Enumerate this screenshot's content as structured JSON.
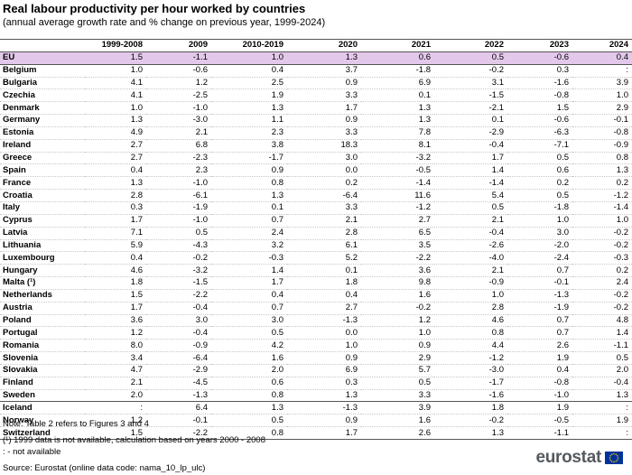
{
  "title": "Real labour productivity per hour worked by countries",
  "subtitle": "(annual average growth rate and % change on previous year, 1999-2024)",
  "columns": [
    "",
    "1999-2008",
    "2009",
    "2010-2019",
    "2020",
    "2021",
    "2022",
    "2023",
    "2024"
  ],
  "eu": [
    "EU",
    "1.5",
    "-1.1",
    "1.0",
    "1.3",
    "0.6",
    "0.5",
    "-0.6",
    "0.4"
  ],
  "rows": [
    [
      "Belgium",
      "1.0",
      "-0.6",
      "0.4",
      "3.7",
      "-1.8",
      "-0.2",
      "0.3",
      ":"
    ],
    [
      "Bulgaria",
      "4.1",
      "1.2",
      "2.5",
      "0.9",
      "6.9",
      "3.1",
      "-1.6",
      "3.9"
    ],
    [
      "Czechia",
      "4.1",
      "-2.5",
      "1.9",
      "3.3",
      "0.1",
      "-1.5",
      "-0.8",
      "1.0"
    ],
    [
      "Denmark",
      "1.0",
      "-1.0",
      "1.3",
      "1.7",
      "1.3",
      "-2.1",
      "1.5",
      "2.9"
    ],
    [
      "Germany",
      "1.3",
      "-3.0",
      "1.1",
      "0.9",
      "1.3",
      "0.1",
      "-0.6",
      "-0.1"
    ],
    [
      "Estonia",
      "4.9",
      "2.1",
      "2.3",
      "3.3",
      "7.8",
      "-2.9",
      "-6.3",
      "-0.8"
    ],
    [
      "Ireland",
      "2.7",
      "6.8",
      "3.8",
      "18.3",
      "8.1",
      "-0.4",
      "-7.1",
      "-0.9"
    ],
    [
      "Greece",
      "2.7",
      "-2.3",
      "-1.7",
      "3.0",
      "-3.2",
      "1.7",
      "0.5",
      "0.8"
    ],
    [
      "Spain",
      "0.4",
      "2.3",
      "0.9",
      "0.0",
      "-0.5",
      "1.4",
      "0.6",
      "1.3"
    ],
    [
      "France",
      "1.3",
      "-1.0",
      "0.8",
      "0.2",
      "-1.4",
      "-1.4",
      "0.2",
      "0.2"
    ],
    [
      "Croatia",
      "2.8",
      "-6.1",
      "1.3",
      "-6.4",
      "11.6",
      "5.4",
      "0.5",
      "-1.2"
    ],
    [
      "Italy",
      "0.3",
      "-1.9",
      "0.1",
      "3.3",
      "-1.2",
      "0.5",
      "-1.8",
      "-1.4"
    ],
    [
      "Cyprus",
      "1.7",
      "-1.0",
      "0.7",
      "2.1",
      "2.7",
      "2.1",
      "1.0",
      "1.0"
    ],
    [
      "Latvia",
      "7.1",
      "0.5",
      "2.4",
      "2.8",
      "6.5",
      "-0.4",
      "3.0",
      "-0.2"
    ],
    [
      "Lithuania",
      "5.9",
      "-4.3",
      "3.2",
      "6.1",
      "3.5",
      "-2.6",
      "-2.0",
      "-0.2"
    ],
    [
      "Luxembourg",
      "0.4",
      "-0.2",
      "-0.3",
      "5.2",
      "-2.2",
      "-4.0",
      "-2.4",
      "-0.3"
    ],
    [
      "Hungary",
      "4.6",
      "-3.2",
      "1.4",
      "0.1",
      "3.6",
      "2.1",
      "0.7",
      "0.2"
    ],
    [
      "Malta (¹)",
      "1.8",
      "-1.5",
      "1.7",
      "1.8",
      "9.8",
      "-0.9",
      "-0.1",
      "2.4"
    ],
    [
      "Netherlands",
      "1.5",
      "-2.2",
      "0.4",
      "0.4",
      "1.6",
      "1.0",
      "-1.3",
      "-0.2"
    ],
    [
      "Austria",
      "1.7",
      "-0.4",
      "0.7",
      "2.7",
      "-0.2",
      "2.8",
      "-1.9",
      "-0.2"
    ],
    [
      "Poland",
      "3.6",
      "3.0",
      "3.0",
      "-1.3",
      "1.2",
      "4.6",
      "0.7",
      "4.8"
    ],
    [
      "Portugal",
      "1.2",
      "-0.4",
      "0.5",
      "0.0",
      "1.0",
      "0.8",
      "0.7",
      "1.4"
    ],
    [
      "Romania",
      "8.0",
      "-0.9",
      "4.2",
      "1.0",
      "0.9",
      "4.4",
      "2.6",
      "-1.1"
    ],
    [
      "Slovenia",
      "3.4",
      "-6.4",
      "1.6",
      "0.9",
      "2.9",
      "-1.2",
      "1.9",
      "0.5"
    ],
    [
      "Slovakia",
      "4.7",
      "-2.9",
      "2.0",
      "6.9",
      "5.7",
      "-3.0",
      "0.4",
      "2.0"
    ],
    [
      "Finland",
      "2.1",
      "-4.5",
      "0.6",
      "0.3",
      "0.5",
      "-1.7",
      "-0.8",
      "-0.4"
    ],
    [
      "Sweden",
      "2.0",
      "-1.3",
      "0.8",
      "1.3",
      "3.3",
      "-1.6",
      "-1.0",
      "1.3"
    ]
  ],
  "efta_rows": [
    [
      "Iceland",
      ":",
      "6.4",
      "1.3",
      "-1.3",
      "3.9",
      "1.8",
      "1.9",
      ":"
    ],
    [
      "Norway",
      "1.2",
      "-0.1",
      "0.5",
      "0.9",
      "1.6",
      "-0.2",
      "-0.5",
      "1.9"
    ],
    [
      "Switzerland",
      "1.5",
      "-2.2",
      "0.8",
      "1.7",
      "2.6",
      "1.3",
      "-1.1",
      ":"
    ]
  ],
  "notes": {
    "note1": "Note: Table 2 refers to Figures 3 and 4",
    "note2": "(¹) 1999 data is not available, calculation based on years 2000 - 2008",
    "note3": ": - not available",
    "source": "Source:  Eurostat (online data code: nama_10_lp_ulc)"
  },
  "logo": {
    "text": "eurostat",
    "flag_color": "#003399",
    "star_color": "#ffcc00",
    "icon": "eu-flag-icon"
  },
  "colors": {
    "eu_row_bg": "#e3c8eb",
    "logo_text": "#555a5e"
  }
}
